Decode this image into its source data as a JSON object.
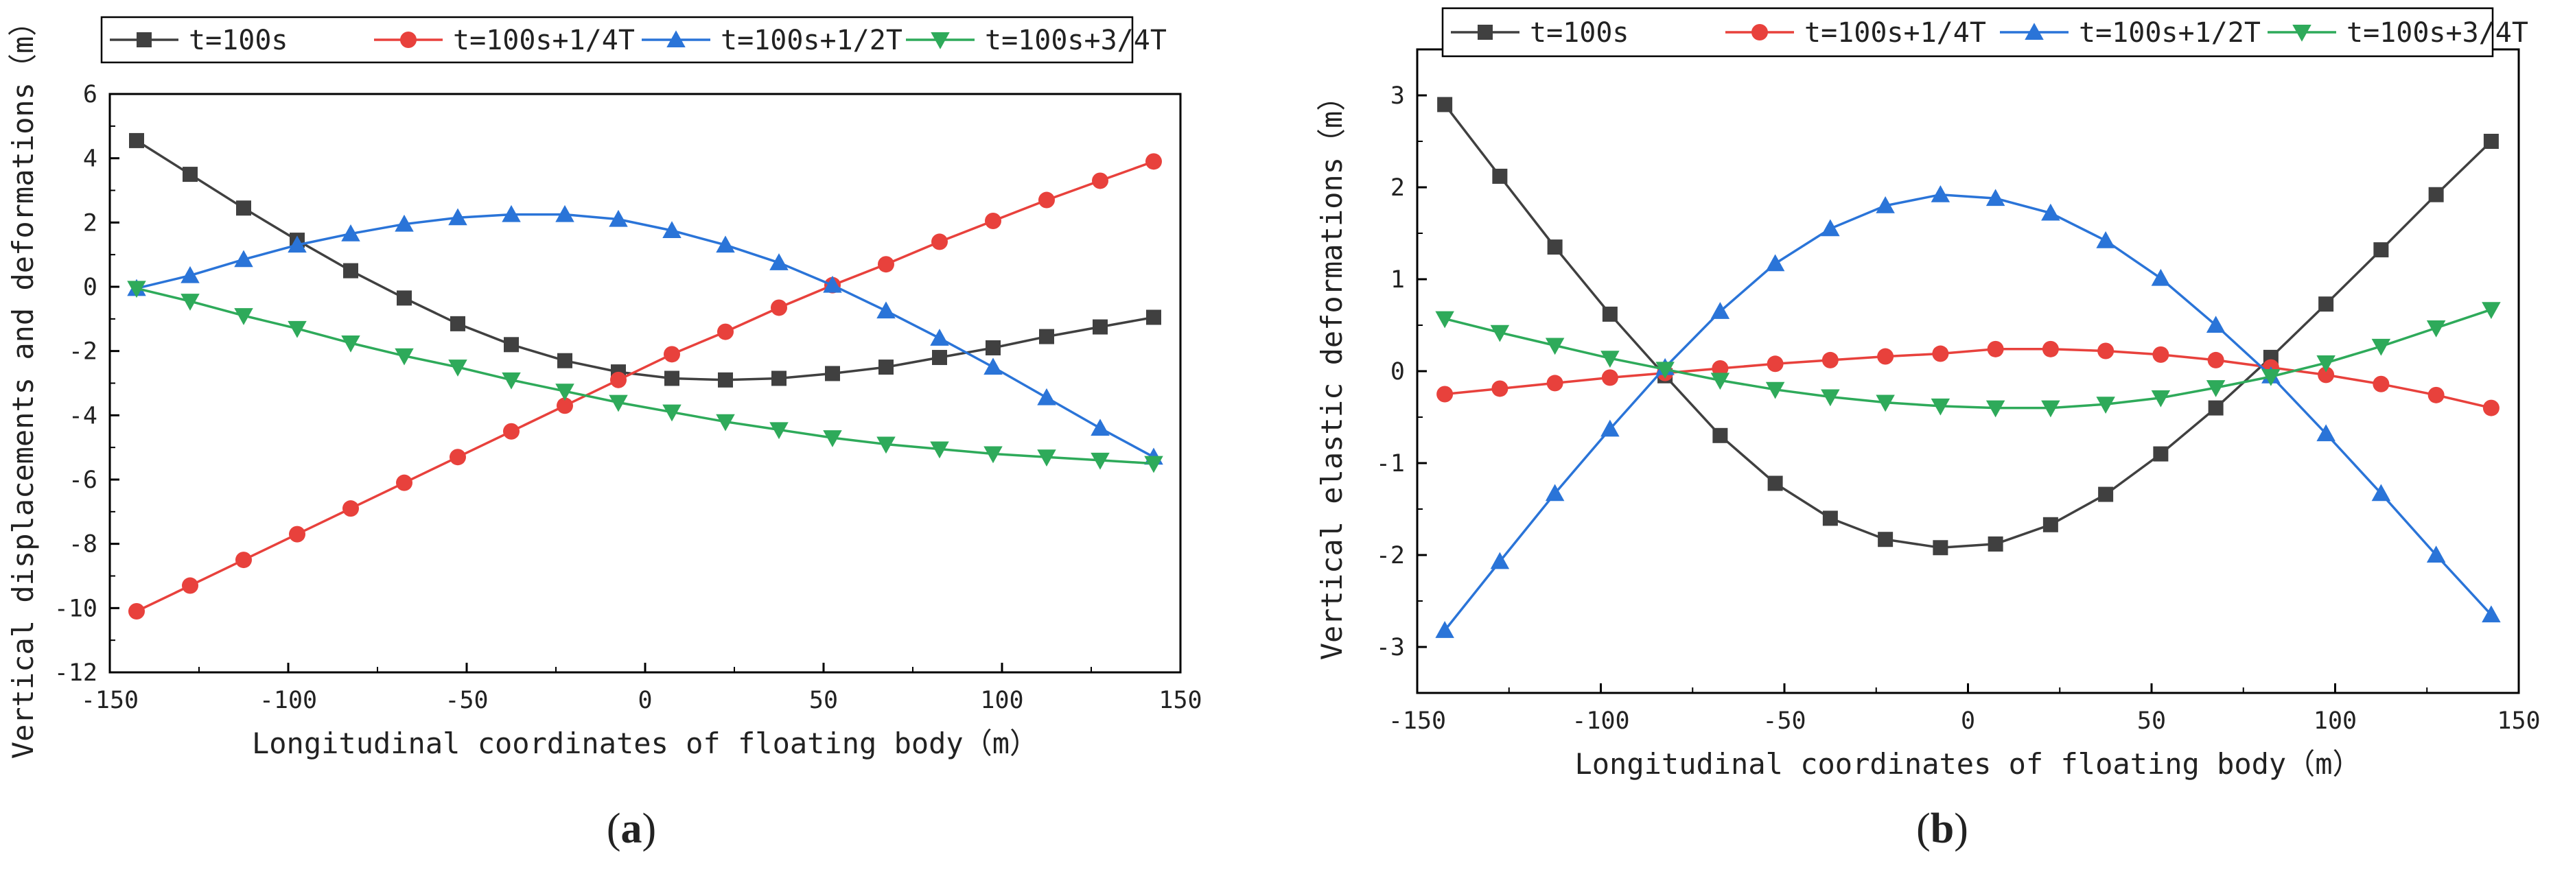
{
  "figure": {
    "panels": [
      "(a)",
      "(b)"
    ]
  },
  "colors": {
    "series": [
      "#404040",
      "#e8413c",
      "#2a74d8",
      "#2eaa5a"
    ],
    "axis": "#000000"
  },
  "chart_data": [
    {
      "type": "line",
      "title": "",
      "panel_label": "(a)",
      "xlabel": "Longitudinal coordinates of floating body（m）",
      "ylabel": "Vertical displacements and deformations（m）",
      "xlim": [
        -150,
        150
      ],
      "ylim": [
        -12,
        6
      ],
      "xticks": [
        -150,
        -100,
        -50,
        0,
        50,
        100,
        150
      ],
      "yticks": [
        -12,
        -10,
        -8,
        -6,
        -4,
        -2,
        0,
        2,
        4,
        6
      ],
      "grid": false,
      "legend": "top",
      "x": [
        -142.5,
        -127.5,
        -112.5,
        -97.5,
        -82.5,
        -67.5,
        -52.5,
        -37.5,
        -22.5,
        -7.5,
        7.5,
        22.5,
        37.5,
        52.5,
        67.5,
        82.5,
        97.5,
        112.5,
        127.5,
        142.5
      ],
      "series": [
        {
          "name": "t=100s",
          "marker": "square",
          "values": [
            4.55,
            3.5,
            2.45,
            1.45,
            0.5,
            -0.35,
            -1.15,
            -1.8,
            -2.3,
            -2.65,
            -2.85,
            -2.9,
            -2.85,
            -2.7,
            -2.5,
            -2.2,
            -1.9,
            -1.55,
            -1.25,
            -0.95
          ]
        },
        {
          "name": "t=100s+1/4T",
          "marker": "circle",
          "values": [
            -10.1,
            -9.3,
            -8.5,
            -7.7,
            -6.9,
            -6.1,
            -5.3,
            -4.5,
            -3.7,
            -2.9,
            -2.1,
            -1.4,
            -0.65,
            0.05,
            0.7,
            1.4,
            2.05,
            2.7,
            3.3,
            3.9
          ]
        },
        {
          "name": "t=100s+1/2T",
          "marker": "triangle-up",
          "values": [
            -0.05,
            0.35,
            0.85,
            1.3,
            1.65,
            1.95,
            2.15,
            2.25,
            2.25,
            2.1,
            1.75,
            1.3,
            0.75,
            0.05,
            -0.75,
            -1.6,
            -2.5,
            -3.45,
            -4.4,
            -5.3
          ]
        },
        {
          "name": "t=100s+3/4T",
          "marker": "triangle-down",
          "values": [
            -0.05,
            -0.45,
            -0.9,
            -1.3,
            -1.75,
            -2.15,
            -2.5,
            -2.9,
            -3.25,
            -3.6,
            -3.9,
            -4.2,
            -4.45,
            -4.7,
            -4.9,
            -5.05,
            -5.2,
            -5.3,
            -5.4,
            -5.5
          ]
        }
      ]
    },
    {
      "type": "line",
      "title": "",
      "panel_label": "(b)",
      "xlabel": "Longitudinal coordinates of floating body（m）",
      "ylabel": "Vertical elastic deformations（m）",
      "xlim": [
        -150,
        150
      ],
      "ylim": [
        -3.5,
        3.5
      ],
      "xticks": [
        -150,
        -100,
        -50,
        0,
        50,
        100,
        150
      ],
      "yticks": [
        -3,
        -2,
        -1,
        0,
        1,
        2,
        3
      ],
      "grid": false,
      "legend": "top",
      "x": [
        -142.5,
        -127.5,
        -112.5,
        -97.5,
        -82.5,
        -67.5,
        -52.5,
        -37.5,
        -22.5,
        -7.5,
        7.5,
        22.5,
        37.5,
        52.5,
        67.5,
        82.5,
        97.5,
        112.5,
        127.5,
        142.5
      ],
      "series": [
        {
          "name": "t=100s",
          "marker": "square",
          "values": [
            2.9,
            2.12,
            1.35,
            0.62,
            -0.05,
            -0.7,
            -1.22,
            -1.6,
            -1.83,
            -1.92,
            -1.88,
            -1.67,
            -1.34,
            -0.9,
            -0.4,
            0.15,
            0.73,
            1.32,
            1.92,
            2.5
          ]
        },
        {
          "name": "t=100s+1/4T",
          "marker": "circle",
          "values": [
            -0.25,
            -0.19,
            -0.13,
            -0.07,
            -0.02,
            0.03,
            0.08,
            0.12,
            0.16,
            0.19,
            0.24,
            0.24,
            0.22,
            0.18,
            0.12,
            0.04,
            -0.04,
            -0.14,
            -0.26,
            -0.4
          ]
        },
        {
          "name": "t=100s+1/2T",
          "marker": "triangle-up",
          "values": [
            -2.82,
            -2.07,
            -1.33,
            -0.63,
            0.04,
            0.65,
            1.17,
            1.55,
            1.8,
            1.92,
            1.88,
            1.72,
            1.42,
            1.01,
            0.5,
            -0.05,
            -0.68,
            -1.33,
            -2.0,
            -2.65
          ]
        },
        {
          "name": "t=100s+3/4T",
          "marker": "triangle-down",
          "values": [
            0.57,
            0.42,
            0.28,
            0.14,
            0.02,
            -0.1,
            -0.2,
            -0.28,
            -0.34,
            -0.38,
            -0.4,
            -0.4,
            -0.36,
            -0.29,
            -0.18,
            -0.06,
            0.09,
            0.27,
            0.47,
            0.67
          ]
        }
      ]
    }
  ]
}
